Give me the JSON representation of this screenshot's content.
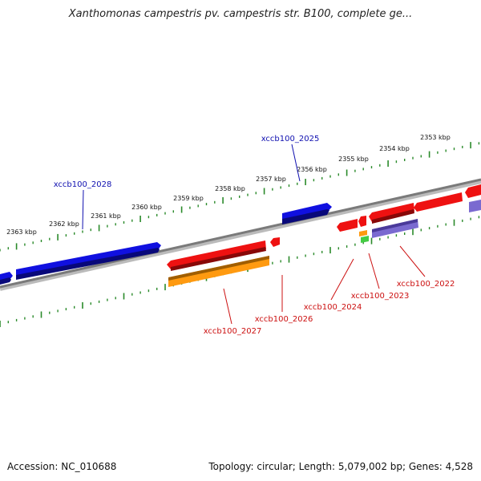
{
  "title": "Xanthomonas campestris pv. campestris str. B100, complete ge...",
  "footer": {
    "accession": "Accession: NC_010688",
    "topology": "Topology: circular; Length: 5,079,002 bp; Genes: 4,528"
  },
  "colors": {
    "backbone": "#7a7a7a",
    "tick_track": "#2a8a2a",
    "forward_gene": "#1010e0",
    "reverse_gene": "#ee1111",
    "orange_feature": "#ff9a10",
    "purple_feature": "#7a6ad0",
    "green_feature": "#44cc44",
    "forward_label": "#1010b0",
    "reverse_label": "#cc1010"
  },
  "kbp_ticks": [
    "2363 kbp",
    "2362 kbp",
    "2361 kbp",
    "2360 kbp",
    "2359 kbp",
    "2358 kbp",
    "2357 kbp",
    "2356 kbp",
    "2355 kbp",
    "2354 kbp",
    "2353 kbp"
  ],
  "gene_labels": {
    "forward": [
      "xccb100_2028",
      "xccb100_2025"
    ],
    "reverse": [
      "xccb100_2027",
      "xccb100_2026",
      "xccb100_2024",
      "xccb100_2023",
      "xccb100_2022"
    ]
  }
}
